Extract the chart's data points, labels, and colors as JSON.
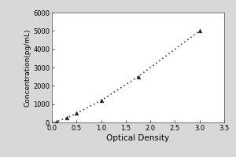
{
  "x_data": [
    0.05,
    0.1,
    0.2,
    0.3,
    0.5,
    1.0,
    1.75,
    3.0
  ],
  "y_data": [
    0,
    50,
    150,
    250,
    500,
    1200,
    2500,
    5000
  ],
  "marker_x": [
    0.1,
    0.3,
    0.5,
    1.0,
    1.75,
    3.0
  ],
  "marker_y": [
    50,
    250,
    500,
    1200,
    2500,
    5000
  ],
  "xlabel": "Optical Density",
  "ylabel": "Concentration(pg/mL)",
  "xlim": [
    0,
    3.5
  ],
  "ylim": [
    0,
    6000
  ],
  "xticks": [
    0,
    0.5,
    1.0,
    1.5,
    2.0,
    2.5,
    3.0,
    3.5
  ],
  "yticks": [
    0,
    1000,
    2000,
    3000,
    4000,
    5000,
    6000
  ],
  "outer_bg_color": "#d8d8d8",
  "plot_bg_color": "#ffffff",
  "line_color": "#444444",
  "marker_color": "#222222",
  "marker_size": 3.5,
  "line_width": 1.2,
  "xlabel_fontsize": 7.5,
  "ylabel_fontsize": 6.5,
  "tick_fontsize": 6.0
}
